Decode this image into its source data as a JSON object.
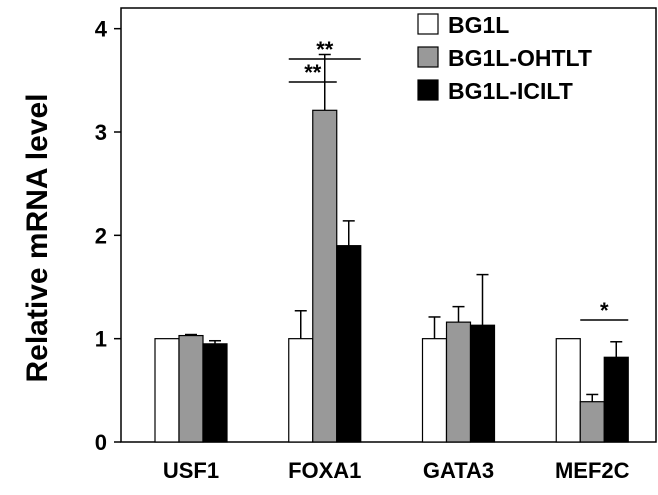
{
  "chart_data": {
    "type": "bar",
    "ylabel": "Relative mRNA level",
    "ylim": [
      0,
      4.2
    ],
    "yticks": [
      "0",
      "1",
      "2",
      "3",
      "4"
    ],
    "categories": [
      "USF1",
      "FOXA1",
      "GATA3",
      "MEF2C"
    ],
    "series": [
      {
        "name": "BG1L",
        "color": "#ffffff",
        "values": [
          1.0,
          1.0,
          1.0,
          1.0
        ],
        "errors": [
          0.0,
          0.27,
          0.21,
          0.0
        ]
      },
      {
        "name": "BG1L-OHTLT",
        "color": "#999999",
        "values": [
          1.03,
          3.21,
          1.16,
          0.39
        ],
        "errors": [
          0.01,
          0.54,
          0.15,
          0.07
        ]
      },
      {
        "name": "BG1L-ICILT",
        "color": "#000000",
        "values": [
          0.95,
          1.9,
          1.13,
          0.82
        ],
        "errors": [
          0.03,
          0.24,
          0.49,
          0.15
        ]
      }
    ],
    "significance": [
      {
        "group": 1,
        "from": 0,
        "to": 2,
        "label": "**"
      },
      {
        "group": 1,
        "from": 0,
        "to": 1,
        "label": "**"
      },
      {
        "group": 3,
        "from": 1,
        "to": 2,
        "label": "*"
      }
    ],
    "legend_position": "top-right",
    "grid": false
  }
}
